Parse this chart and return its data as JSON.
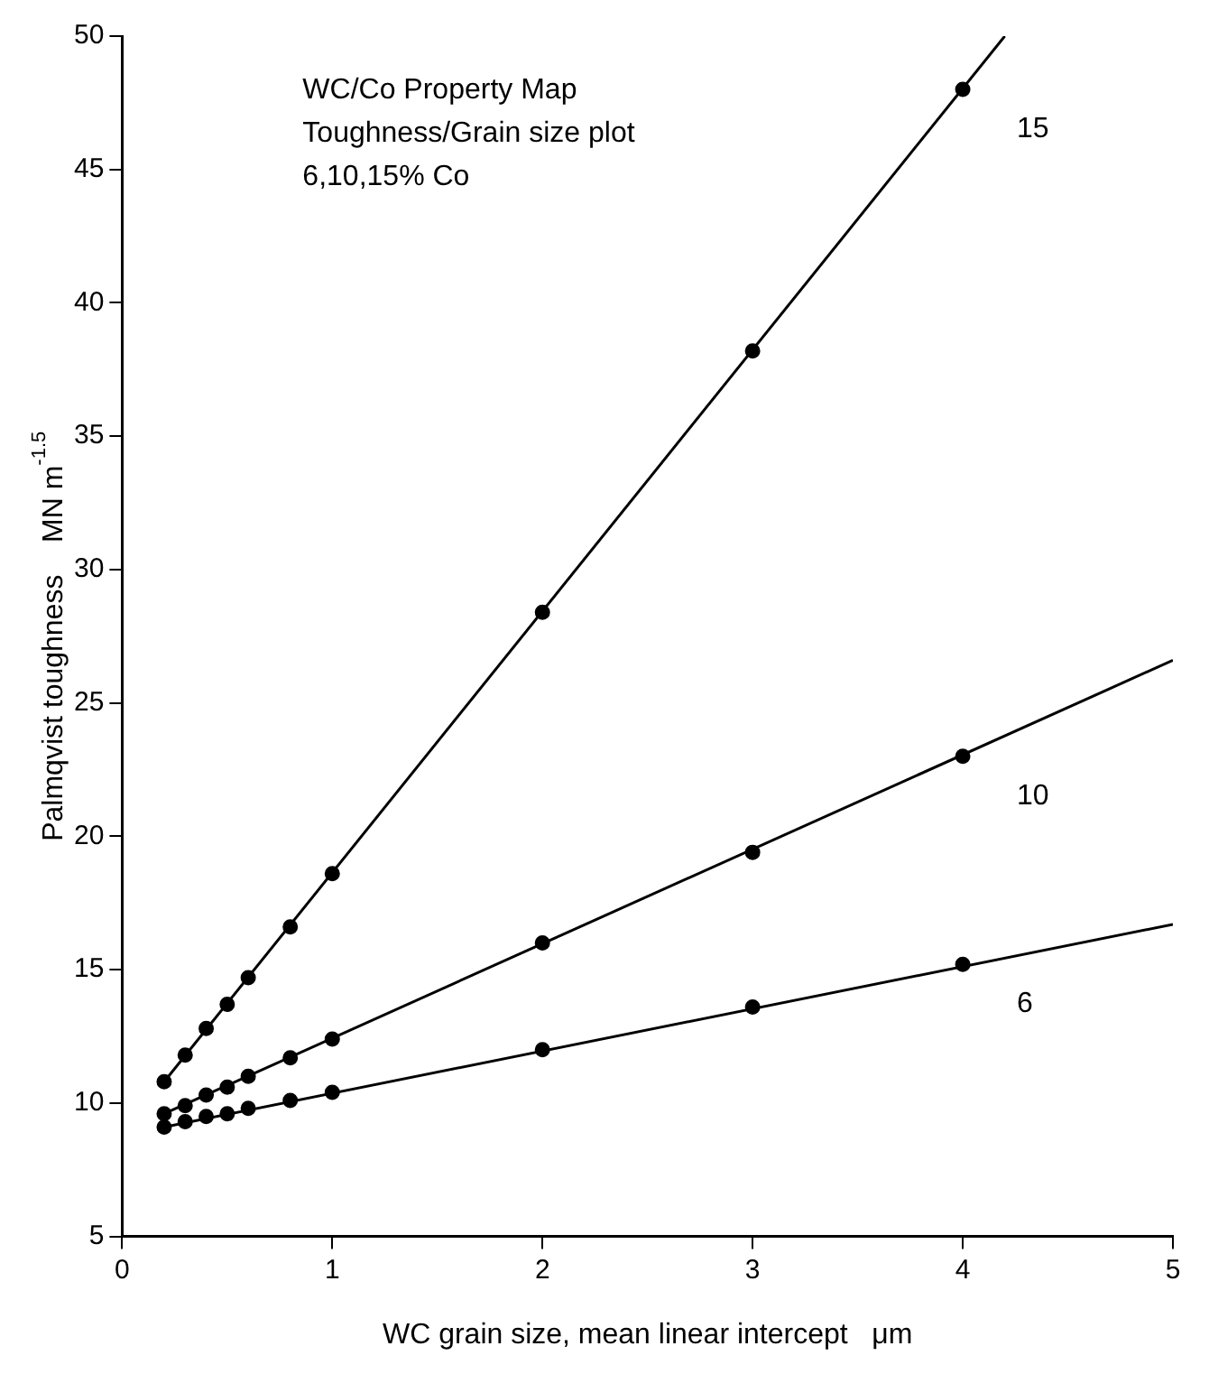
{
  "chart_data": {
    "type": "line",
    "xlabel": "WC grain size, mean linear intercept   μm",
    "ylabel": "Palmqvist toughness    MN m$^{-1.5}$",
    "xlim": [
      0,
      5
    ],
    "xticks": [
      0,
      1,
      2,
      3,
      4,
      5
    ],
    "ylim": [
      5,
      50
    ],
    "yticks": [
      5,
      10,
      15,
      20,
      25,
      30,
      35,
      40,
      45,
      50
    ],
    "grid": false,
    "legend": false,
    "annotations": [
      "WC/Co Property Map",
      "Toughness/Grain size plot",
      "6,10,15% Co"
    ],
    "series": [
      {
        "type": "scatter",
        "name": "15",
        "marker": "circle",
        "color": "#000000",
        "x": [
          0.2,
          0.3,
          0.4,
          0.5,
          0.6,
          0.8,
          1,
          2,
          3,
          4
        ],
        "values": [
          10.8,
          11.8,
          12.8,
          13.7,
          14.7,
          16.6,
          18.6,
          28.4,
          38.2,
          48.0
        ]
      },
      {
        "type": "scatter",
        "name": "10",
        "marker": "circle",
        "color": "#000000",
        "x": [
          0.2,
          0.3,
          0.4,
          0.5,
          0.6,
          0.8,
          1,
          2,
          3,
          4
        ],
        "values": [
          9.6,
          9.9,
          10.3,
          10.6,
          11.0,
          11.7,
          12.4,
          16.0,
          19.4,
          23.0
        ]
      },
      {
        "type": "scatter",
        "name": "6",
        "marker": "circle",
        "color": "#000000",
        "x": [
          0.2,
          0.3,
          0.4,
          0.5,
          0.6,
          0.8,
          1,
          2,
          3,
          4
        ],
        "values": [
          9.1,
          9.3,
          9.5,
          9.6,
          9.8,
          10.1,
          10.4,
          12.0,
          13.6,
          15.2
        ]
      },
      {
        "marker": "none",
        "line_style": "solid",
        "color": "#000000",
        "x": [
          0.2,
          4.2
        ],
        "values": [
          10.8,
          50
        ]
      },
      {
        "marker": "none",
        "line_style": "solid",
        "color": "#000000",
        "x": [
          0.2,
          5
        ],
        "values": [
          9.6,
          26.6
        ]
      },
      {
        "marker": "none",
        "line_style": "solid",
        "color": "#000000",
        "x": [
          0.2,
          5
        ],
        "values": [
          9.1,
          16.7
        ]
      }
    ]
  }
}
